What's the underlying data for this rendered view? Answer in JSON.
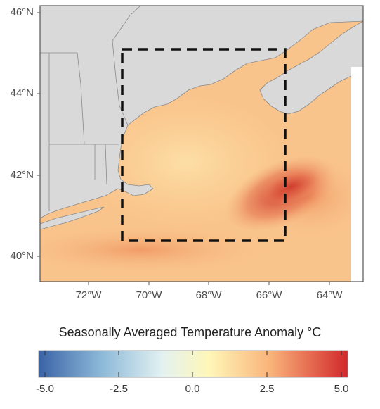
{
  "map": {
    "lat_labels": [
      "46°N",
      "44°N",
      "42°N",
      "40°N"
    ],
    "lon_labels": [
      "72°W",
      "70°W",
      "68°W",
      "66°W",
      "64°W"
    ],
    "lon_range": [
      -73.6,
      -62.9
    ],
    "lat_range": [
      39.4,
      46.1
    ]
  },
  "colorbar": {
    "title": "Seasonally Averaged Temperature Anomaly °C",
    "tick_labels": [
      "-5.0",
      "-2.5",
      "0.0",
      "2.5",
      "5.0"
    ],
    "min": -5.0,
    "max": 5.0,
    "colors": [
      "#3a63a6",
      "#8bb8d8",
      "#e3f1f1",
      "#fff7b8",
      "#f9b37a",
      "#d2282a"
    ]
  },
  "study_box": {
    "lon": [
      -70.9,
      -65.4
    ],
    "lat": [
      40.35,
      45.15
    ]
  }
}
